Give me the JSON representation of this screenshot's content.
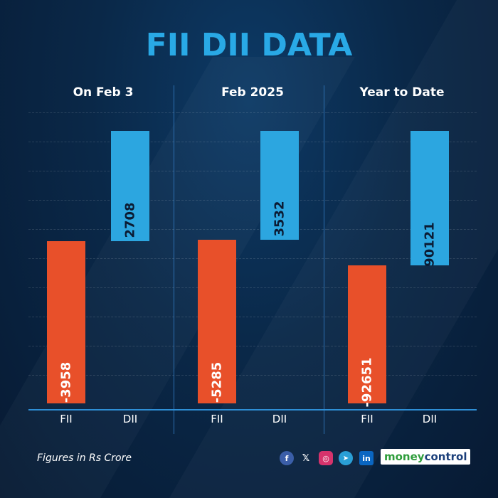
{
  "title": "FII DII DATA",
  "footnote": "Figures in Rs Crore",
  "brand": {
    "part1": "money",
    "part2": "control"
  },
  "social_icons": [
    "facebook-icon",
    "x-icon",
    "instagram-icon",
    "telegram-icon",
    "linkedin-icon"
  ],
  "social_glyphs": {
    "facebook": "f",
    "x": "𝕏",
    "instagram": "◎",
    "telegram": "➤",
    "linkedin": "in"
  },
  "colors": {
    "fii": "#e8502a",
    "dii": "#2ca6e0",
    "title": "#29a9e6"
  },
  "chart_data": [
    {
      "type": "bar",
      "title": "On Feb 3",
      "categories": [
        "FII",
        "DII"
      ],
      "values": [
        -3958,
        2708
      ]
    },
    {
      "type": "bar",
      "title": "Feb 2025",
      "categories": [
        "FII",
        "DII"
      ],
      "values": [
        -5285,
        3532
      ]
    },
    {
      "type": "bar",
      "title": "Year to Date",
      "categories": [
        "FII",
        "DII"
      ],
      "values": [
        -92651,
        90121
      ]
    }
  ]
}
